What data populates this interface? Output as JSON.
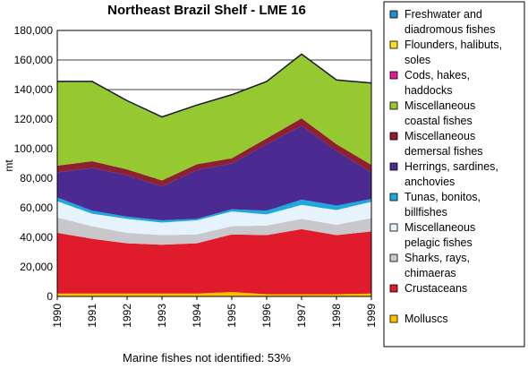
{
  "chart_data": {
    "type": "area",
    "stacked": true,
    "title": "Northeast Brazil Shelf - LME 16",
    "xlabel": "",
    "ylabel": "mt",
    "x": [
      "1990",
      "1991",
      "1992",
      "1993",
      "1994",
      "1995",
      "1996",
      "1997",
      "1998",
      "1999"
    ],
    "ylim": [
      0,
      180000
    ],
    "yticks": [
      "0",
      "20,000",
      "40,000",
      "60,000",
      "80,000",
      "100,000",
      "120,000",
      "140,000",
      "160,000",
      "180,000"
    ],
    "grid": true,
    "legend_position": "right",
    "series": [
      {
        "name": "Molluscs",
        "color": "#FFC000",
        "values": [
          2000,
          2000,
          2000,
          2000,
          2000,
          3000,
          1500,
          1500,
          1500,
          2000
        ]
      },
      {
        "name": "Crustaceans",
        "color": "#E01B2C",
        "values": [
          41000,
          37000,
          34000,
          33000,
          34000,
          39000,
          40000,
          44000,
          40000,
          42000
        ]
      },
      {
        "name": "Sharks, rays, chimaeras",
        "color": "#C8C8CC",
        "values": [
          10500,
          8500,
          7000,
          6500,
          6000,
          5500,
          6500,
          7000,
          7000,
          9000
        ]
      },
      {
        "name": "Miscellaneous pelagic fishes",
        "color": "#E6F2FC",
        "values": [
          11000,
          8500,
          9500,
          8500,
          9500,
          10000,
          7500,
          9500,
          10000,
          11000
        ]
      },
      {
        "name": "Tunas, bonitos, billfishes",
        "color": "#1FA8DE",
        "values": [
          2500,
          2000,
          1500,
          1500,
          1000,
          1500,
          2500,
          3500,
          3000,
          2000
        ]
      },
      {
        "name": "Herrings, sardines, anchovies",
        "color": "#4B2A92",
        "values": [
          17000,
          29000,
          28000,
          23000,
          33000,
          31000,
          45000,
          50000,
          37000,
          18000
        ]
      },
      {
        "name": "Miscellaneous demersal fishes",
        "color": "#8E2030",
        "values": [
          4500,
          4500,
          4000,
          4000,
          4000,
          3500,
          4000,
          5000,
          4500,
          5000
        ]
      },
      {
        "name": "Miscellaneous coastal fishes",
        "color": "#96C830",
        "values": [
          56500,
          53500,
          46000,
          42500,
          39500,
          42500,
          38000,
          43000,
          43000,
          55000
        ]
      },
      {
        "name": "Cods, hakes, haddocks",
        "color": "#E0208E",
        "values": [
          0,
          0,
          0,
          0,
          0,
          0,
          0,
          0,
          0,
          0
        ]
      },
      {
        "name": "Flounders, halibuts, soles",
        "color": "#F8E020",
        "values": [
          0,
          0,
          0,
          0,
          0,
          0,
          0,
          0,
          0,
          0
        ]
      },
      {
        "name": "Freshwater and diadromous fishes",
        "color": "#1F8ECA",
        "values": [
          500,
          500,
          500,
          500,
          500,
          500,
          500,
          500,
          500,
          500
        ]
      }
    ],
    "legend": [
      {
        "lines": [
          "Freshwater and",
          "diadromous fishes"
        ],
        "color": "#1F8ECA"
      },
      {
        "lines": [
          "Flounders, halibuts,",
          "soles"
        ],
        "color": "#F8E020"
      },
      {
        "lines": [
          "Cods, hakes,",
          "haddocks"
        ],
        "color": "#E0208E"
      },
      {
        "lines": [
          "Miscellaneous",
          "coastal fishes"
        ],
        "color": "#96C830"
      },
      {
        "lines": [
          "Miscellaneous",
          "demersal fishes"
        ],
        "color": "#8E2030"
      },
      {
        "lines": [
          "Herrings, sardines,",
          "anchovies"
        ],
        "color": "#4B2A92"
      },
      {
        "lines": [
          "Tunas, bonitos,",
          "billfishes"
        ],
        "color": "#1FA8DE"
      },
      {
        "lines": [
          "Miscellaneous",
          "pelagic fishes"
        ],
        "color": "#E6F2FC"
      },
      {
        "lines": [
          "Sharks, rays,",
          "chimaeras"
        ],
        "color": "#C8C8CC"
      },
      {
        "lines": [
          "Crustaceans"
        ],
        "color": "#E01B2C"
      },
      {
        "lines": [
          "Molluscs"
        ],
        "color": "#FFC000"
      }
    ],
    "footnote": "Marine fishes not identified: 53%"
  }
}
